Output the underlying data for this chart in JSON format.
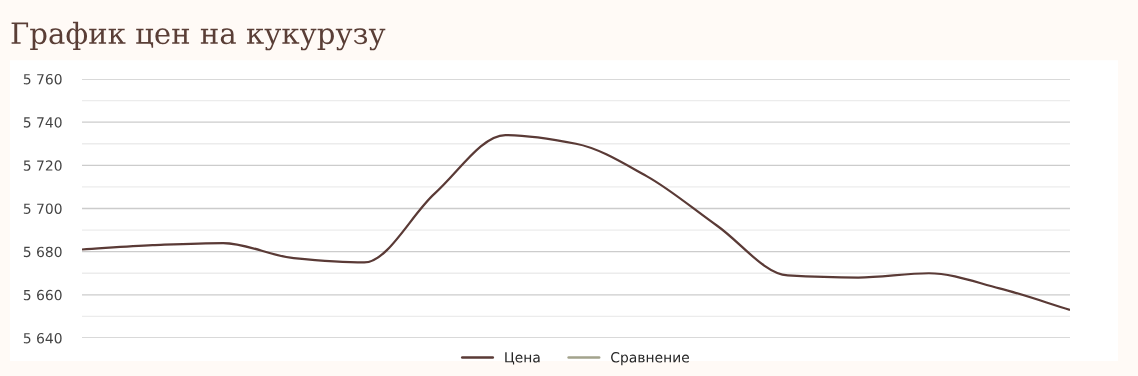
{
  "chart_data": {
    "type": "line",
    "title": "График цен на кукурузу",
    "categories": [
      null,
      null,
      null,
      null,
      null,
      null,
      null,
      null,
      null,
      null,
      null,
      null,
      null,
      null,
      null
    ],
    "series": [
      {
        "name": "Цена",
        "color": "#5a3a36",
        "values": [
          5681,
          5683,
          5684,
          5677,
          5675,
          5707,
          5734,
          5730,
          5715,
          5692,
          5669,
          5668,
          5670,
          5663,
          5653
        ]
      },
      {
        "name": "Сравнение",
        "color": "#a3a38c",
        "values": [
          null,
          null,
          null,
          null,
          null,
          null,
          null,
          null,
          null,
          null,
          null,
          null,
          null,
          null,
          null
        ]
      }
    ],
    "ylim": [
      5640,
      5760
    ],
    "yticks": [
      {
        "value": 5640,
        "label": "5 640"
      },
      {
        "value": 5650,
        "label": null
      },
      {
        "value": 5660,
        "label": "5 660"
      },
      {
        "value": 5670,
        "label": null
      },
      {
        "value": 5680,
        "label": "5 680"
      },
      {
        "value": 5690,
        "label": null
      },
      {
        "value": 5700,
        "label": "5 700"
      },
      {
        "value": 5710,
        "label": null
      },
      {
        "value": 5720,
        "label": "5 720"
      },
      {
        "value": 5730,
        "label": null
      },
      {
        "value": 5740,
        "label": "5 740"
      },
      {
        "value": 5750,
        "label": null
      },
      {
        "value": 5760,
        "label": "5 760"
      }
    ],
    "grid": "y",
    "legend": "bottom",
    "marker": "none",
    "line_style": "solid"
  }
}
